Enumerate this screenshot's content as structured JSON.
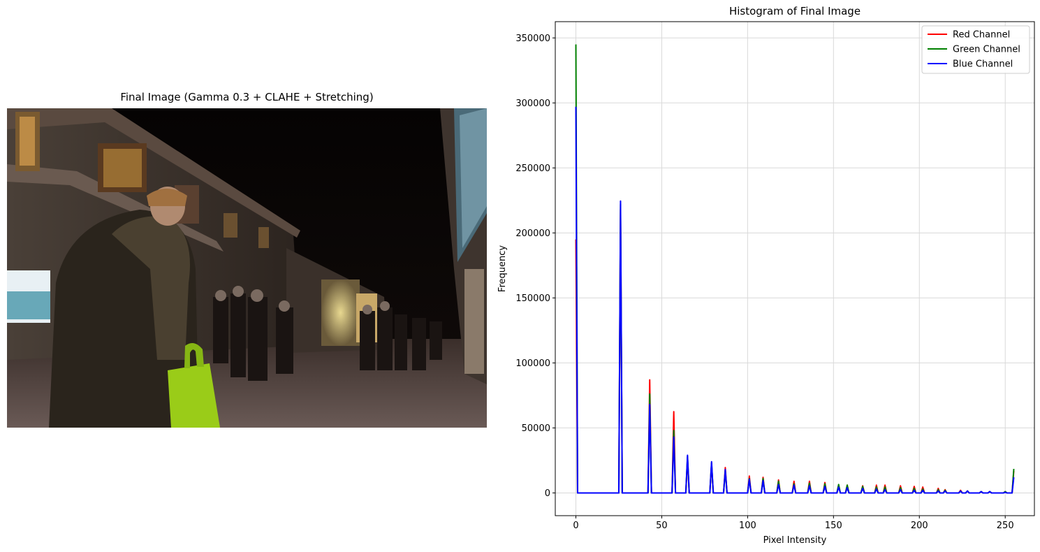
{
  "left_panel": {
    "title": "Final Image (Gamma 0.3 + CLAHE + Stretching)"
  },
  "chart_data": {
    "type": "line",
    "title": "Histogram of Final Image",
    "xlabel": "Pixel Intensity",
    "ylabel": "Frequency",
    "xlim": [
      -12,
      267
    ],
    "ylim": [
      -17500,
      362500
    ],
    "xticks": [
      0,
      50,
      100,
      150,
      200,
      250
    ],
    "yticks": [
      0,
      50000,
      100000,
      150000,
      200000,
      250000,
      300000,
      350000
    ],
    "grid": true,
    "legend_position": "top-right",
    "series": [
      {
        "name": "Red Channel",
        "color": "#ff0000",
        "points": [
          [
            0,
            195000
          ],
          [
            26,
            218000
          ],
          [
            43,
            87000
          ],
          [
            57,
            62500
          ],
          [
            65,
            26000
          ],
          [
            79,
            22000
          ],
          [
            87,
            19500
          ],
          [
            101,
            13000
          ],
          [
            109,
            12000
          ],
          [
            118,
            10000
          ],
          [
            127,
            9000
          ],
          [
            136,
            9000
          ],
          [
            145,
            8000
          ],
          [
            153,
            6000
          ],
          [
            158,
            6000
          ],
          [
            167,
            5500
          ],
          [
            175,
            6000
          ],
          [
            180,
            6000
          ],
          [
            189,
            5500
          ],
          [
            197,
            5000
          ],
          [
            202,
            4500
          ],
          [
            211,
            3500
          ],
          [
            215,
            2500
          ],
          [
            224,
            2000
          ],
          [
            228,
            1500
          ],
          [
            236,
            1000
          ],
          [
            241,
            1000
          ],
          [
            250,
            1000
          ],
          [
            255,
            17000
          ]
        ]
      },
      {
        "name": "Green Channel",
        "color": "#008000",
        "points": [
          [
            0,
            345000
          ],
          [
            26,
            222000
          ],
          [
            43,
            76000
          ],
          [
            57,
            48000
          ],
          [
            65,
            28000
          ],
          [
            79,
            23000
          ],
          [
            87,
            17000
          ],
          [
            101,
            11000
          ],
          [
            109,
            11000
          ],
          [
            118,
            9000
          ],
          [
            127,
            7000
          ],
          [
            136,
            7500
          ],
          [
            145,
            7000
          ],
          [
            153,
            6500
          ],
          [
            158,
            6000
          ],
          [
            167,
            5000
          ],
          [
            175,
            4500
          ],
          [
            180,
            4500
          ],
          [
            189,
            4000
          ],
          [
            197,
            3500
          ],
          [
            202,
            3000
          ],
          [
            211,
            2500
          ],
          [
            215,
            2000
          ],
          [
            224,
            1500
          ],
          [
            228,
            1500
          ],
          [
            236,
            1000
          ],
          [
            241,
            1000
          ],
          [
            250,
            1000
          ],
          [
            255,
            18500
          ]
        ]
      },
      {
        "name": "Blue Channel",
        "color": "#0000ff",
        "points": [
          [
            0,
            297000
          ],
          [
            26,
            224500
          ],
          [
            43,
            68000
          ],
          [
            57,
            43000
          ],
          [
            65,
            29000
          ],
          [
            79,
            24000
          ],
          [
            87,
            18000
          ],
          [
            101,
            10500
          ],
          [
            109,
            9500
          ],
          [
            118,
            6500
          ],
          [
            127,
            6000
          ],
          [
            136,
            5500
          ],
          [
            145,
            5000
          ],
          [
            153,
            4500
          ],
          [
            158,
            4000
          ],
          [
            167,
            3500
          ],
          [
            175,
            3000
          ],
          [
            180,
            2500
          ],
          [
            189,
            2500
          ],
          [
            197,
            2000
          ],
          [
            202,
            2000
          ],
          [
            211,
            1500
          ],
          [
            215,
            1500
          ],
          [
            224,
            1500
          ],
          [
            228,
            1500
          ],
          [
            236,
            1000
          ],
          [
            241,
            1000
          ],
          [
            250,
            500
          ],
          [
            255,
            12000
          ]
        ]
      }
    ]
  }
}
